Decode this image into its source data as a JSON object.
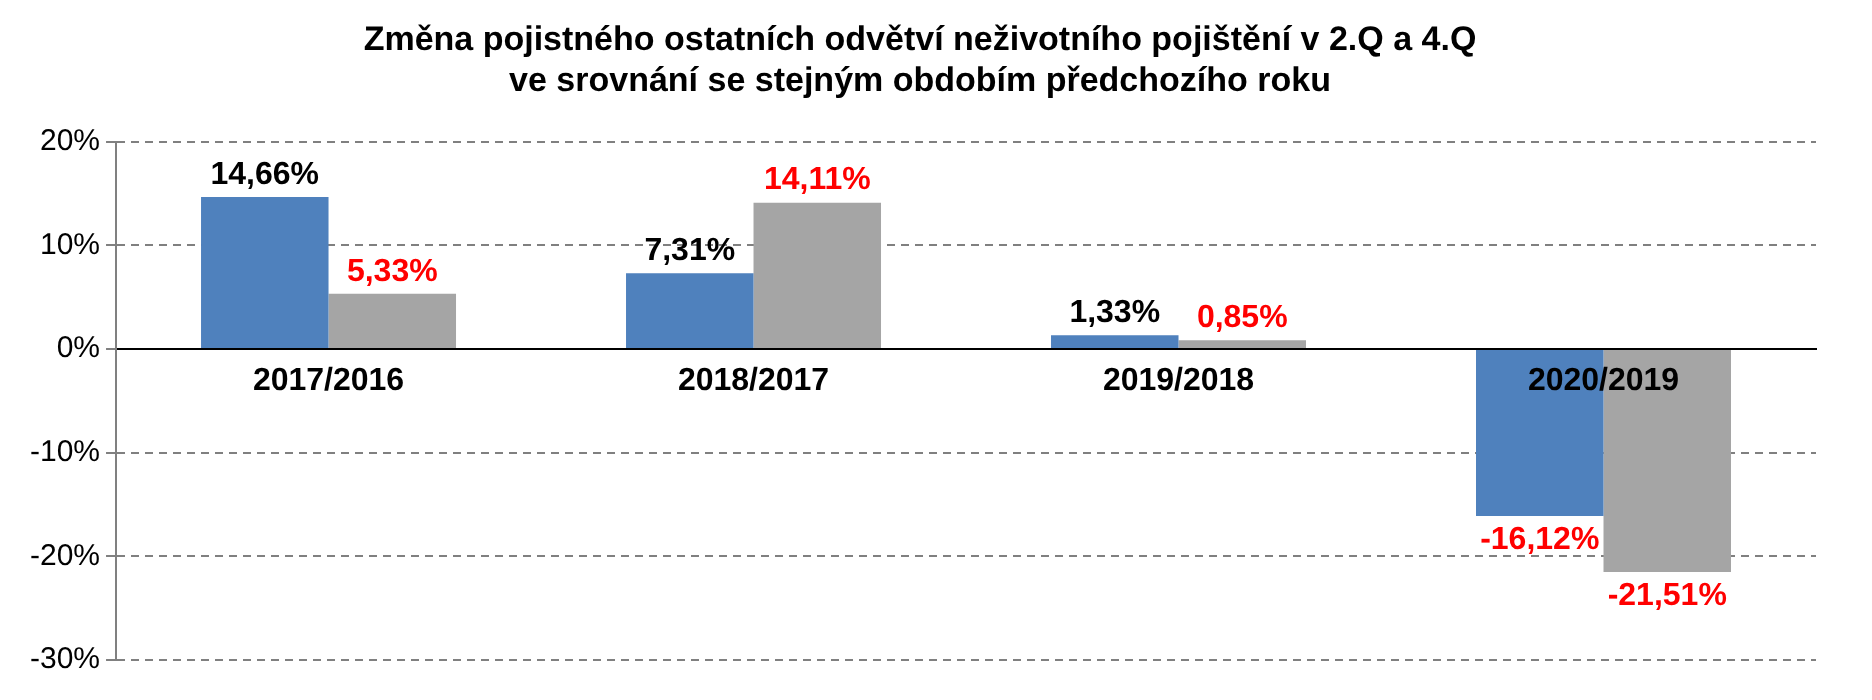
{
  "chart_data": {
    "type": "bar",
    "title": "Změna pojistného ostatních odvětví neživotního pojištění v 2.Q a 4.Q\nve srovnání se stejným obdobím předchozího roku",
    "categories": [
      "2017/2016",
      "2018/2017",
      "2019/2018",
      "2020/2019"
    ],
    "series": [
      {
        "color": "#4f81bd",
        "values": [
          14.66,
          7.31,
          1.33,
          -16.12
        ],
        "value_labels": [
          "14,66%",
          "7,31%",
          "1,33%",
          "-16,12%"
        ]
      },
      {
        "color": "#a5a5a5",
        "values": [
          5.33,
          14.11,
          0.85,
          -21.51
        ],
        "value_labels": [
          "5,33%",
          "14,11%",
          "0,85%",
          "-21,51%"
        ]
      }
    ],
    "ylim": [
      -30,
      20
    ],
    "yticks": [
      {
        "value": -30,
        "label": "-30%"
      },
      {
        "value": -20,
        "label": "-20%"
      },
      {
        "value": -10,
        "label": "-10%"
      },
      {
        "value": 0,
        "label": "0%"
      },
      {
        "value": 10,
        "label": "10%"
      },
      {
        "value": 20,
        "label": "20%"
      }
    ],
    "grid": "y",
    "legend": false
  }
}
